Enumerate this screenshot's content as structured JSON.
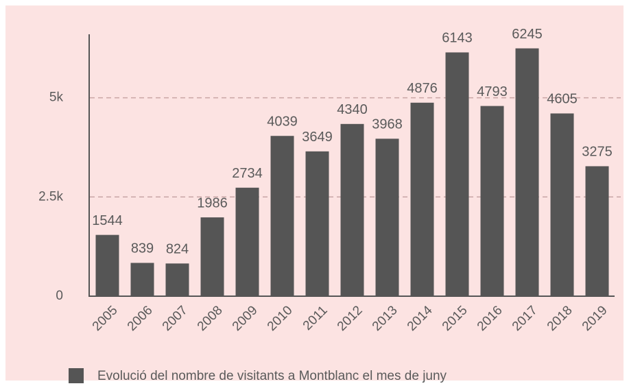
{
  "chart_data": {
    "type": "bar",
    "categories": [
      "2005",
      "2006",
      "2007",
      "2008",
      "2009",
      "2010",
      "2011",
      "2012",
      "2013",
      "2014",
      "2015",
      "2016",
      "2017",
      "2018",
      "2019"
    ],
    "series": [
      {
        "name": "Evolució del nombre de visitants a Montblanc el mes de juny",
        "color": "#555555",
        "values": [
          1544,
          839,
          824,
          1986,
          2734,
          4039,
          3649,
          4340,
          3968,
          4876,
          6143,
          4793,
          6245,
          4605,
          3275
        ]
      }
    ],
    "ylim": [
      0,
      6600
    ],
    "yticks": [
      0,
      {
        "value": 2500,
        "label": "2.5k"
      },
      {
        "value": 5000,
        "label": "5k"
      }
    ],
    "grid": true,
    "legend": "bottom"
  }
}
